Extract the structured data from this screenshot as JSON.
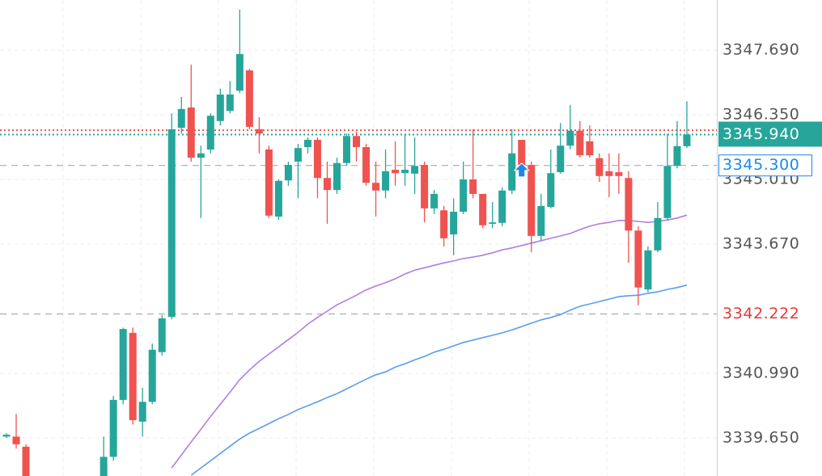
{
  "chart_data": {
    "type": "candlestick",
    "up_color": "#26a69a",
    "down_color": "#ef5350",
    "ylim": [
      3338.863,
      3348.729
    ],
    "yticks": [
      {
        "value": 3339.65,
        "label": "3339.650"
      },
      {
        "value": 3340.99,
        "label": "3340.990"
      },
      {
        "value": 3343.67,
        "label": "3343.670"
      },
      {
        "value": 3345.01,
        "label": "3345.010"
      },
      {
        "value": 3346.35,
        "label": "3346.350"
      },
      {
        "value": 3347.69,
        "label": "3347.690"
      }
    ],
    "grid": true,
    "open": [
      3339.68,
      3339.68,
      3339.47,
      null,
      null,
      null,
      null,
      null,
      null,
      null,
      3338.86,
      3339.26,
      3340.44,
      3341.83,
      3339.99,
      3340.4,
      3341.43,
      3342.16,
      3346.08,
      3346.5,
      3345.46,
      3345.63,
      3346.22,
      3346.43,
      3346.85,
      3347.27,
      3346.05,
      3345.63,
      3344.24,
      3344.99,
      3345.38,
      3345.68,
      3345.83,
      3345.04,
      3344.79,
      3345.35,
      3345.91,
      3345.68,
      3344.94,
      3344.78,
      3345.21,
      3345.14,
      3345.13,
      3345.31,
      3344.41,
      3344.37,
      3343.87,
      3344.34,
      3345.01,
      3344.71,
      3344.09,
      3344.11,
      3344.78,
      3345.83,
      3345.31,
      3343.84,
      3344.44,
      3345.16,
      3345.71,
      3346.02,
      3345.8,
      3345.45,
      3345.18,
      3345.16,
      3345.04,
      3343.95,
      3342.73,
      3343.54,
      3344.21,
      3345.29,
      3345.7
    ],
    "high": [
      3339.75,
      3340.15,
      3339.52,
      null,
      null,
      null,
      null,
      null,
      null,
      null,
      3339.68,
      3340.52,
      3341.94,
      3341.94,
      3340.69,
      3341.61,
      3342.2,
      3346.38,
      3346.72,
      3347.39,
      3345.71,
      3346.38,
      3346.89,
      3347.05,
      3348.53,
      3347.3,
      3346.3,
      3345.71,
      3345.01,
      3345.38,
      3345.75,
      3345.88,
      3345.88,
      3345.38,
      3345.46,
      3345.96,
      3346.0,
      3345.75,
      3345.38,
      3345.63,
      3345.8,
      3345.96,
      3345.88,
      3345.38,
      3344.79,
      3344.46,
      3344.62,
      3345.38,
      3346.05,
      3344.71,
      3344.54,
      3344.84,
      3346.05,
      3345.83,
      3345.38,
      3344.71,
      3345.63,
      3346.18,
      3346.55,
      3346.22,
      3346.13,
      3345.55,
      3345.55,
      3345.55,
      3345.18,
      3344.04,
      3343.62,
      3344.54,
      3345.96,
      3346.22,
      3346.63
    ],
    "low": [
      3339.65,
      3339.43,
      3338.86,
      null,
      null,
      null,
      null,
      null,
      null,
      null,
      3338.86,
      3339.18,
      3340.35,
      3339.93,
      3339.68,
      3340.35,
      3341.36,
      3342.11,
      3345.96,
      3345.38,
      3344.21,
      3345.55,
      3346.13,
      3346.38,
      3346.8,
      3346.05,
      3345.55,
      3344.21,
      3344.17,
      3344.88,
      3344.62,
      3345.55,
      3344.62,
      3344.09,
      3344.71,
      3345.29,
      3345.38,
      3344.88,
      3344.24,
      3344.62,
      3344.88,
      3344.88,
      3344.71,
      3344.12,
      3344.29,
      3343.62,
      3343.44,
      3344.29,
      3344.62,
      3344.0,
      3344.0,
      3344.04,
      3344.71,
      3345.13,
      3343.5,
      3343.74,
      3344.41,
      3345.13,
      3345.63,
      3345.46,
      3345.46,
      3344.96,
      3344.64,
      3344.71,
      3343.28,
      3342.4,
      3342.67,
      3343.5,
      3344.17,
      3345.24,
      3345.66
    ],
    "close": [
      3339.72,
      3339.52,
      3338.86,
      null,
      null,
      null,
      null,
      null,
      null,
      null,
      3339.26,
      3340.44,
      3341.91,
      3340.02,
      3340.4,
      3341.48,
      3342.13,
      3346.05,
      3346.47,
      3345.46,
      3345.55,
      3346.33,
      3346.77,
      3346.77,
      3347.61,
      3346.1,
      3345.96,
      3344.26,
      3344.98,
      3345.31,
      3345.66,
      3345.83,
      3345.04,
      3344.79,
      3345.35,
      3345.91,
      3345.68,
      3344.94,
      3344.78,
      3345.18,
      3345.14,
      3345.21,
      3345.29,
      3344.41,
      3344.71,
      3343.79,
      3344.34,
      3345.01,
      3344.71,
      3344.06,
      3344.12,
      3344.78,
      3345.55,
      3345.31,
      3343.84,
      3344.46,
      3345.14,
      3345.71,
      3346.02,
      3345.51,
      3345.51,
      3345.08,
      3345.08,
      3345.08,
      3343.95,
      3342.77,
      3343.54,
      3344.21,
      3345.29,
      3345.7,
      3345.94
    ],
    "series": [
      {
        "color": "#b07fe0",
        "values": [
          null,
          null,
          null,
          null,
          null,
          null,
          null,
          null,
          null,
          null,
          null,
          null,
          null,
          null,
          null,
          null,
          null,
          3339.03,
          3339.3,
          3339.57,
          3339.83,
          3340.1,
          3340.35,
          3340.6,
          3340.86,
          3341.06,
          3341.24,
          3341.39,
          3341.54,
          3341.69,
          3341.84,
          3342.01,
          3342.15,
          3342.28,
          3342.41,
          3342.51,
          3342.61,
          3342.72,
          3342.8,
          3342.87,
          3342.95,
          3343.05,
          3343.13,
          3343.18,
          3343.23,
          3343.28,
          3343.32,
          3343.37,
          3343.4,
          3343.44,
          3343.49,
          3343.55,
          3343.59,
          3343.64,
          3343.69,
          3343.74,
          3343.79,
          3343.84,
          3343.89,
          3343.97,
          3344.04,
          3344.09,
          3344.12,
          3344.16,
          3344.16,
          3344.14,
          3344.12,
          3344.14,
          3344.17,
          3344.21,
          3344.27
        ]
      },
      {
        "color": "#5b9cf0",
        "values": [
          null,
          null,
          null,
          null,
          null,
          null,
          null,
          null,
          null,
          null,
          null,
          null,
          null,
          null,
          null,
          null,
          null,
          null,
          null,
          3338.88,
          3339.03,
          3339.18,
          3339.33,
          3339.48,
          3339.63,
          3339.75,
          3339.85,
          3339.95,
          3340.05,
          3340.14,
          3340.24,
          3340.32,
          3340.4,
          3340.49,
          3340.57,
          3340.67,
          3340.77,
          3340.87,
          3340.96,
          3341.02,
          3341.12,
          3341.19,
          3341.27,
          3341.34,
          3341.43,
          3341.49,
          3341.56,
          3341.63,
          3341.68,
          3341.73,
          3341.78,
          3341.83,
          3341.89,
          3341.96,
          3342.03,
          3342.1,
          3342.15,
          3342.21,
          3342.3,
          3342.38,
          3342.43,
          3342.48,
          3342.53,
          3342.58,
          3342.6,
          3342.61,
          3342.65,
          3342.68,
          3342.73,
          3342.77,
          3342.82
        ]
      }
    ],
    "price_lines": [
      {
        "value": 3346.03,
        "color": "#ef5350",
        "style": "dotted"
      },
      {
        "value": 3345.94,
        "label": "3345.940",
        "color": "#26a69a",
        "style": "dotted",
        "box": "filled",
        "label_color": "#ffffff"
      },
      {
        "value": 3345.3,
        "label": "3345.300",
        "color": "#9e9e9e",
        "style": "dashed",
        "box": "outline",
        "label_color": "#1e88e5"
      },
      {
        "value": 3342.222,
        "label": "3342.222",
        "color": "#9e9e9e",
        "style": "dashed",
        "label_color": "#e53935"
      }
    ],
    "markers": [
      {
        "index": 53,
        "value": 3345.18,
        "color": "#1e88e5"
      }
    ]
  }
}
